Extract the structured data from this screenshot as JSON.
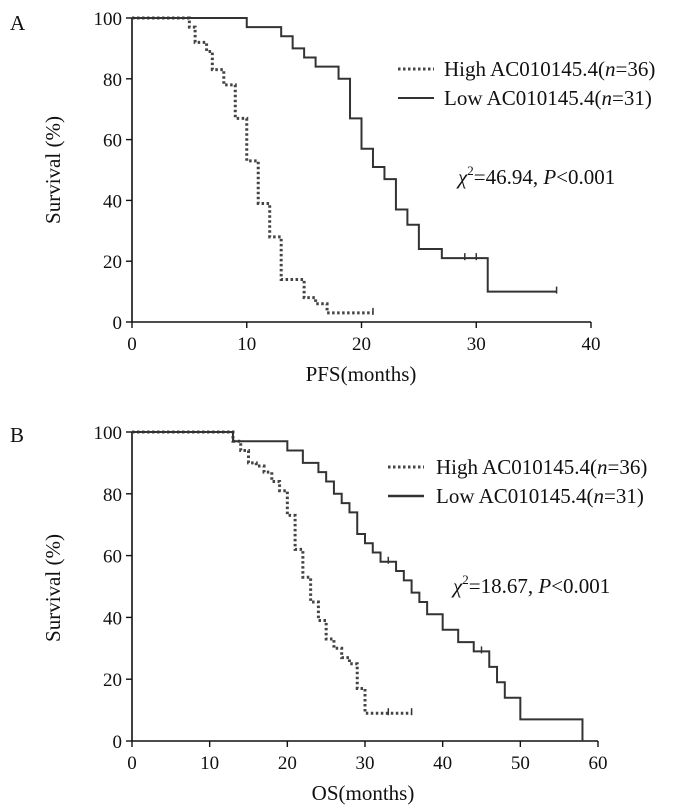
{
  "chart_data": [
    {
      "type": "line",
      "panel_label": "A",
      "title": "",
      "xlabel": "PFS(months)",
      "ylabel": "Survival (%)",
      "xlim": [
        0,
        40
      ],
      "ylim": [
        0,
        100
      ],
      "xticks": [
        0,
        10,
        20,
        30,
        40
      ],
      "yticks": [
        0,
        20,
        40,
        60,
        80,
        100
      ],
      "xtick_labels": [
        "0",
        "10",
        "20",
        "30",
        "40"
      ],
      "ytick_labels": [
        "0",
        "20",
        "40",
        "60",
        "80",
        "100"
      ],
      "legend_position": "right",
      "series": [
        {
          "name": "High",
          "legend_prefix": "High AC010145.4(",
          "legend_n_symbol": "n",
          "legend_suffix": "=36)",
          "style": "dotted",
          "x": [
            0,
            5,
            5.5,
            6.5,
            7,
            8,
            9,
            10,
            11,
            12,
            13,
            15,
            16,
            17,
            21
          ],
          "y": [
            100,
            97,
            92,
            89,
            83,
            78,
            67,
            53,
            39,
            28,
            14,
            8,
            6,
            3,
            3
          ],
          "censored_x": [
            21
          ]
        },
        {
          "name": "Low",
          "legend_prefix": "Low AC010145.4(",
          "legend_n_symbol": "n",
          "legend_suffix": "=31)",
          "style": "solid",
          "x": [
            0,
            10,
            13,
            14,
            15,
            16,
            18,
            19,
            20,
            21,
            22,
            23,
            24,
            25,
            27,
            29,
            31,
            37
          ],
          "y": [
            100,
            97,
            94,
            90,
            87,
            84,
            80,
            67,
            57,
            51,
            47,
            37,
            32,
            24,
            21,
            21,
            10,
            10
          ],
          "censored_x": [
            29,
            30,
            37
          ]
        }
      ],
      "stat_symbol": "χ",
      "stat_exponent": "2",
      "stat_value": "=46.94, ",
      "p_symbol": "P",
      "p_value": "<0.001"
    },
    {
      "type": "line",
      "panel_label": "B",
      "title": "",
      "xlabel": "OS(months)",
      "ylabel": "Survival (%)",
      "xlim": [
        0,
        60
      ],
      "ylim": [
        0,
        100
      ],
      "xticks": [
        0,
        10,
        20,
        30,
        40,
        50,
        60
      ],
      "yticks": [
        0,
        20,
        40,
        60,
        80,
        100
      ],
      "xtick_labels": [
        "0",
        "10",
        "20",
        "30",
        "40",
        "50",
        "60"
      ],
      "ytick_labels": [
        "0",
        "20",
        "40",
        "60",
        "80",
        "100"
      ],
      "legend_position": "top-right",
      "series": [
        {
          "name": "High",
          "legend_prefix": "High AC010145.4(",
          "legend_n_symbol": "n",
          "legend_suffix": "=36)",
          "style": "dotted",
          "x": [
            0,
            13,
            14,
            15,
            16,
            17,
            18,
            19,
            20,
            21,
            22,
            23,
            24,
            25,
            26,
            27,
            28,
            29,
            30,
            36
          ],
          "y": [
            100,
            97,
            94,
            90,
            89,
            87,
            84,
            81,
            73,
            62,
            53,
            45,
            39,
            33,
            30,
            27,
            25,
            17,
            9,
            9
          ],
          "censored_x": [
            33,
            36
          ]
        },
        {
          "name": "Low",
          "legend_prefix": "Low AC010145.4(",
          "legend_n_symbol": "n",
          "legend_suffix": "=31)",
          "style": "solid",
          "x": [
            0,
            13,
            14,
            17,
            20,
            22,
            24,
            25,
            26,
            27,
            28,
            29,
            30,
            31,
            32,
            33,
            34,
            35,
            36,
            37,
            38,
            40,
            42,
            44,
            45,
            46,
            47,
            48,
            50,
            58
          ],
          "y": [
            100,
            97,
            97,
            97,
            94,
            90,
            87,
            84,
            80,
            77,
            74,
            67,
            64,
            61,
            58,
            58,
            55,
            52,
            48,
            45,
            41,
            36,
            32,
            29,
            29,
            24,
            19,
            14,
            7,
            0
          ],
          "censored_x": [
            33,
            45
          ]
        }
      ],
      "stat_symbol": "χ",
      "stat_exponent": "2",
      "stat_value": "=18.67, ",
      "p_symbol": "P",
      "p_value": "<0.001"
    }
  ]
}
